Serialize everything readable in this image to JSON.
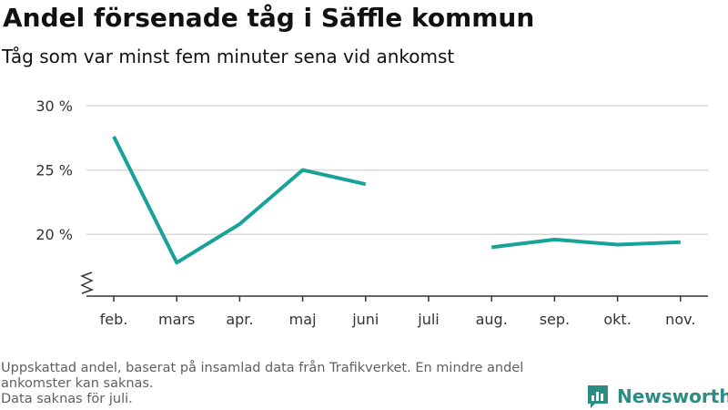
{
  "header": {
    "title": "Andel försenade tåg i Säffle kommun",
    "subtitle": "Tåg som var minst fem minuter sena vid ankomst"
  },
  "footer": {
    "line1": "Uppskattad andel, baserat på insamlad data från Trafikverket. En mindre andel",
    "line2": "ankomster kan saknas.",
    "line3": "Data saknas för juli."
  },
  "brand": {
    "name": "Newsworthy",
    "color": "#2a8d84"
  },
  "chart_data": {
    "type": "line",
    "categories": [
      "feb.",
      "mars",
      "apr.",
      "maj",
      "juni",
      "juli",
      "aug.",
      "sep.",
      "okt.",
      "nov."
    ],
    "series": [
      {
        "values": [
          27.6,
          17.8,
          20.8,
          25.0,
          23.9,
          null,
          19.0,
          19.6,
          19.2,
          19.4
        ]
      }
    ],
    "y_ticks": [
      20,
      25,
      30
    ],
    "y_tick_labels": [
      "20 %",
      "25 %",
      "30 %"
    ],
    "ylim": [
      15.2,
      30
    ],
    "y_axis_break": true,
    "grid": true,
    "line_color": "#17a398",
    "grid_color": "#d9d9d9",
    "axis_color": "#333333"
  }
}
